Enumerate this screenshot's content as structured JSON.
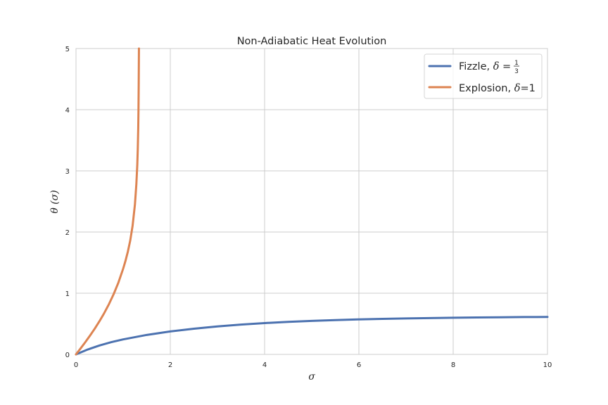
{
  "chart_data": {
    "type": "line",
    "title": "Non-Adiabatic Heat Evolution",
    "xlabel": "σ",
    "ylabel": "θ (σ)",
    "xlim": [
      0,
      10
    ],
    "ylim": [
      0,
      5
    ],
    "x_ticks": [
      "0",
      "2",
      "4",
      "6",
      "8",
      "10"
    ],
    "y_ticks": [
      "0",
      "1",
      "2",
      "3",
      "4",
      "5"
    ],
    "grid": true,
    "legend_position": "upper-right",
    "series": [
      {
        "name": "Fizzle, δ = 1/3",
        "legend_prefix": "Fizzle, ",
        "legend_delta": "δ",
        "legend_eq": " = ",
        "legend_frac_num": "1",
        "legend_frac_den": "3",
        "color": "#4c72b0",
        "x": [
          0,
          0.25,
          0.5,
          0.75,
          1,
          1.5,
          2,
          2.5,
          3,
          3.5,
          4,
          4.5,
          5,
          5.5,
          6,
          6.5,
          7,
          7.5,
          8,
          8.5,
          9,
          9.5,
          10
        ],
        "y": [
          0,
          0.08,
          0.146,
          0.2,
          0.245,
          0.318,
          0.375,
          0.42,
          0.457,
          0.487,
          0.512,
          0.532,
          0.548,
          0.561,
          0.572,
          0.581,
          0.588,
          0.594,
          0.599,
          0.603,
          0.607,
          0.61,
          0.612
        ]
      },
      {
        "name": "Explosion, δ=1",
        "legend_prefix": "Explosion, ",
        "legend_delta": "δ",
        "legend_suffix": "=1",
        "color": "#dd8452",
        "x": [
          0,
          0.1,
          0.2,
          0.3,
          0.4,
          0.5,
          0.6,
          0.7,
          0.8,
          0.9,
          1.0,
          1.05,
          1.1,
          1.15,
          1.2,
          1.25,
          1.28,
          1.3,
          1.31,
          1.32,
          1.325,
          1.33,
          1.335
        ],
        "y": [
          0,
          0.1,
          0.203,
          0.31,
          0.423,
          0.545,
          0.677,
          0.823,
          0.987,
          1.175,
          1.4,
          1.53,
          1.68,
          1.86,
          2.1,
          2.45,
          2.78,
          3.1,
          3.35,
          3.7,
          3.98,
          4.4,
          5.0
        ]
      }
    ]
  }
}
